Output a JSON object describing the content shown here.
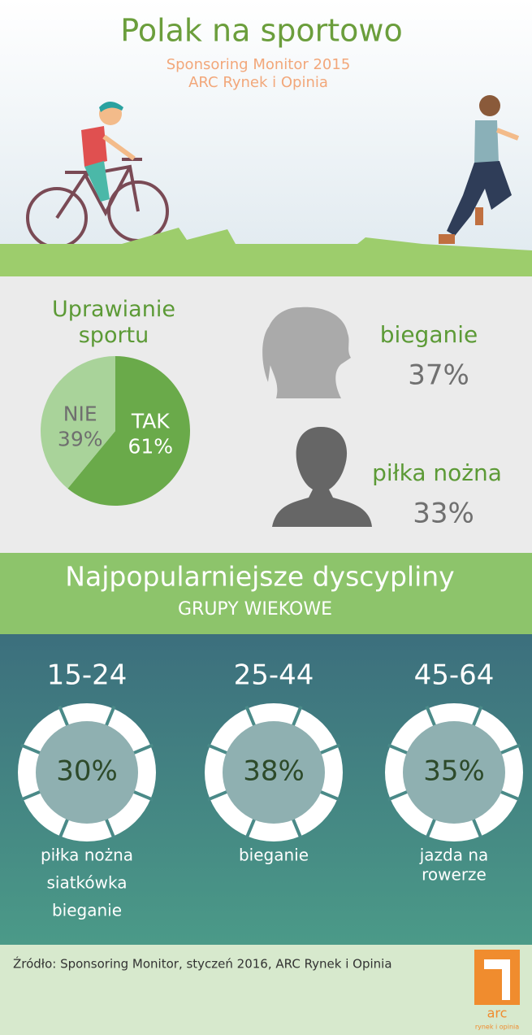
{
  "header": {
    "title": "Polak na sportowo",
    "subtitle_lines": [
      "Sponsoring Monitor 2015",
      "ARC Rynek i Opinia"
    ]
  },
  "chart_data": {
    "type": "pie",
    "title": "Uprawianie sportu",
    "categories": [
      "TAK",
      "NIE"
    ],
    "values": [
      61,
      39
    ],
    "value_labels": [
      "61%",
      "39%"
    ],
    "colors": [
      "#6aaa4a",
      "#a9d39a"
    ]
  },
  "profiles": [
    {
      "activity": "bieganie",
      "value": "37%"
    },
    {
      "activity": "piłka nożna",
      "value": "33%"
    }
  ],
  "section": {
    "title": "Najpopularniejsze dyscypliny",
    "subtitle": "GRUPY WIEKOWE"
  },
  "groups": [
    {
      "age": "15-24",
      "value": "30%",
      "activities": [
        "piłka nożna",
        "siatkówka",
        "bieganie"
      ]
    },
    {
      "age": "25-44",
      "value": "38%",
      "activities": [
        "bieganie"
      ]
    },
    {
      "age": "45-64",
      "value": "35%",
      "activities": [
        "jazda na",
        "rowerze"
      ]
    }
  ],
  "footer": {
    "source": "Źródło: Sponsoring Monitor, styczeń 2016, ARC Rynek i Opinia",
    "logo": "arc",
    "tagline": "rynek i opinia"
  }
}
